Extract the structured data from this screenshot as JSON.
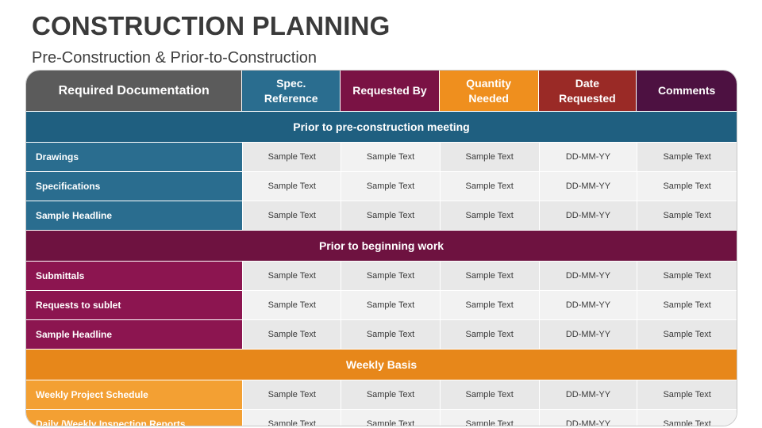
{
  "title": "CONSTRUCTION PLANNING",
  "subtitle": "Pre-Construction & Prior-to-Construction",
  "colors": {
    "gray": "#5b5b5b",
    "blue": "#2a6d8f",
    "maroon": "#7a1244",
    "orange": "#ef8f1e",
    "red": "#9a2a26",
    "purple": "#4d1141",
    "blue_section": "#1f5f80",
    "maroon_section": "#6e1240",
    "orange_section": "#e7871a",
    "blue_label": "#2a6d8f",
    "maroon_label": "#8c1550",
    "orange_label": "#f3a033"
  },
  "headers": [
    "Required Documentation",
    "Spec. Reference",
    "Requested By",
    "Quantity Needed",
    "Date Requested",
    "Comments"
  ],
  "sections": [
    {
      "title": "Prior to pre-construction meeting",
      "rows": [
        {
          "label": "Drawings",
          "cells": [
            "Sample Text",
            "Sample Text",
            "Sample Text",
            "DD-MM-YY",
            "Sample Text"
          ]
        },
        {
          "label": "Specifications",
          "cells": [
            "Sample Text",
            "Sample Text",
            "Sample Text",
            "DD-MM-YY",
            "Sample Text"
          ]
        },
        {
          "label": "Sample Headline",
          "cells": [
            "Sample Text",
            "Sample Text",
            "Sample Text",
            "DD-MM-YY",
            "Sample Text"
          ]
        }
      ]
    },
    {
      "title": "Prior to beginning work",
      "rows": [
        {
          "label": "Submittals",
          "cells": [
            "Sample Text",
            "Sample Text",
            "Sample Text",
            "DD-MM-YY",
            "Sample Text"
          ]
        },
        {
          "label": "Requests to sublet",
          "cells": [
            "Sample Text",
            "Sample Text",
            "Sample Text",
            "DD-MM-YY",
            "Sample Text"
          ]
        },
        {
          "label": "Sample Headline",
          "cells": [
            "Sample Text",
            "Sample Text",
            "Sample Text",
            "DD-MM-YY",
            "Sample Text"
          ]
        }
      ]
    },
    {
      "title": "Weekly Basis",
      "rows": [
        {
          "label": "Weekly Project Schedule",
          "cells": [
            "Sample Text",
            "Sample Text",
            "Sample Text",
            "DD-MM-YY",
            "Sample Text"
          ]
        },
        {
          "label": "Daily /Weekly Inspection Reports",
          "cells": [
            "Sample Text",
            "Sample Text",
            "Sample Text",
            "DD-MM-YY",
            "Sample Text"
          ]
        }
      ]
    }
  ]
}
